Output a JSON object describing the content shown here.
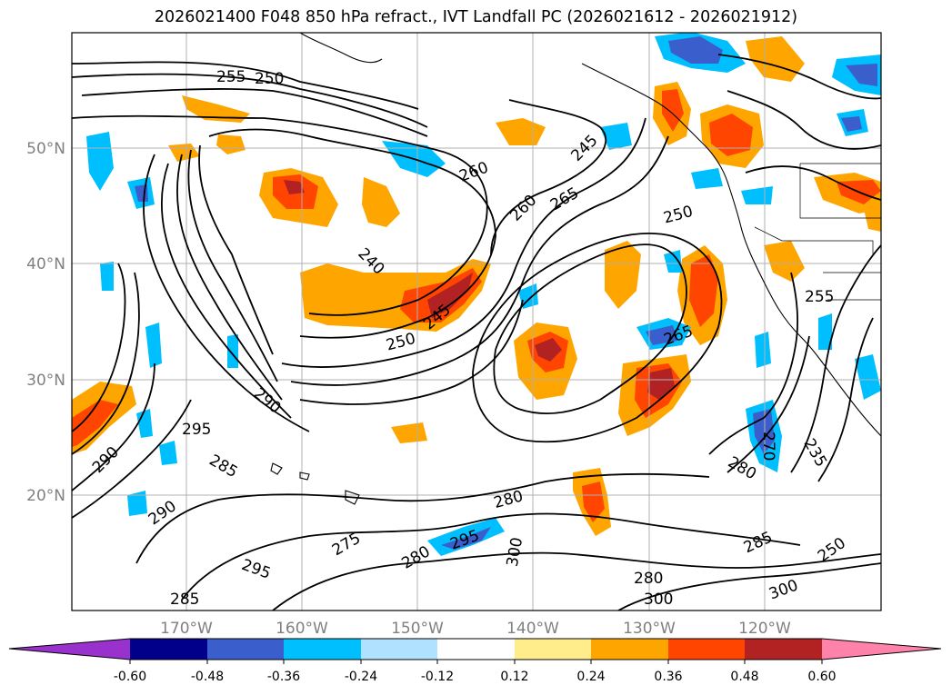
{
  "title": "2026021400 F048 850 hPa refract., IVT Landfall PC (2026021612 - 2026021912)",
  "map": {
    "lon_labels": [
      "170°W",
      "160°W",
      "150°W",
      "140°W",
      "130°W",
      "120°W"
    ],
    "lat_labels": [
      "50°N",
      "40°N",
      "30°N",
      "20°N"
    ],
    "contour_labels": [
      "255",
      "250",
      "245",
      "260",
      "265",
      "260",
      "250",
      "240",
      "245",
      "250",
      "265",
      "255",
      "290",
      "295",
      "285",
      "290",
      "290",
      "275",
      "280",
      "280",
      "295",
      "300",
      "295",
      "285",
      "280",
      "300",
      "280",
      "270",
      "285",
      "235",
      "300",
      "250"
    ]
  },
  "colorbar": {
    "levels": [
      "-0.60",
      "-0.48",
      "-0.36",
      "-0.24",
      "-0.12",
      "0.12",
      "0.24",
      "0.36",
      "0.48",
      "0.60"
    ],
    "colors": [
      "#9932cc",
      "#00008b",
      "#3a5fcd",
      "#00bfff",
      "#b0e2ff",
      "#ffffff",
      "#ffec8b",
      "#ffa500",
      "#ff4500",
      "#b22222",
      "#ff82ab"
    ]
  }
}
